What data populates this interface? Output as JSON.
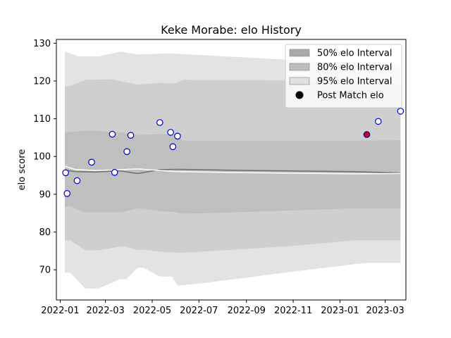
{
  "chart_data": {
    "type": "line",
    "title": "Keke Morabe: elo History",
    "xlabel": "",
    "ylabel": "elo score",
    "xlim": [
      "2021-12-27",
      "2023-03-28"
    ],
    "ylim": [
      62,
      131
    ],
    "x_ticks": [
      {
        "date": "2022-01-01",
        "label": "2022-01"
      },
      {
        "date": "2022-03-01",
        "label": "2022-03"
      },
      {
        "date": "2022-05-01",
        "label": "2022-05"
      },
      {
        "date": "2022-07-01",
        "label": "2022-07"
      },
      {
        "date": "2022-09-01",
        "label": "2022-09"
      },
      {
        "date": "2022-11-01",
        "label": "2022-11"
      },
      {
        "date": "2023-01-01",
        "label": "2023-01"
      },
      {
        "date": "2023-03-01",
        "label": "2023-03"
      }
    ],
    "y_ticks": [
      70,
      80,
      90,
      100,
      110,
      120,
      130
    ],
    "legend": {
      "position": "top-right",
      "entries": [
        {
          "label": "50% elo Interval",
          "color": "#a9a9a9"
        },
        {
          "label": "80% elo Interval",
          "color": "#bdbdbd"
        },
        {
          "label": "95% elo Interval",
          "color": "#e0e0e0"
        },
        {
          "label": "Post Match elo",
          "color": "#000000"
        }
      ]
    },
    "bands": [
      {
        "name": "95% elo Interval",
        "color": "#e3e3e3",
        "upper": [
          [
            "2022-01-07",
            127.8
          ],
          [
            "2022-01-26",
            126.5
          ],
          [
            "2022-02-20",
            126.5
          ],
          [
            "2022-03-20",
            127.8
          ],
          [
            "2022-04-12",
            127.0
          ],
          [
            "2022-05-25",
            127.3
          ],
          [
            "2023-03-21",
            124.0
          ]
        ],
        "lower": [
          [
            "2022-01-07",
            69.2
          ],
          [
            "2022-01-14",
            69.2
          ],
          [
            "2022-02-03",
            65.0
          ],
          [
            "2022-02-20",
            65.0
          ],
          [
            "2022-03-20",
            67.5
          ],
          [
            "2022-03-28",
            67.5
          ],
          [
            "2022-04-12",
            70.5
          ],
          [
            "2022-04-20",
            70.5
          ],
          [
            "2022-05-11",
            68.2
          ],
          [
            "2022-05-27",
            68.2
          ],
          [
            "2022-06-03",
            65.8
          ],
          [
            "2022-06-20",
            66.1
          ],
          [
            "2022-07-20",
            66.8
          ],
          [
            "2022-11-01",
            69.5
          ],
          [
            "2023-01-20",
            71.5
          ],
          [
            "2023-02-05",
            71.8
          ],
          [
            "2023-03-21",
            71.8
          ]
        ]
      },
      {
        "name": "80% elo Interval",
        "color": "#cfcfcf",
        "upper": [
          [
            "2022-01-07",
            118.5
          ],
          [
            "2022-01-14",
            118.7
          ],
          [
            "2022-02-03",
            120.3
          ],
          [
            "2022-03-10",
            120.4
          ],
          [
            "2022-04-12",
            119.0
          ],
          [
            "2022-05-10",
            119.5
          ],
          [
            "2022-05-31",
            119.4
          ],
          [
            "2022-06-10",
            120.3
          ],
          [
            "2023-02-05",
            120.0
          ],
          [
            "2023-03-21",
            119.0
          ]
        ],
        "lower": [
          [
            "2022-01-07",
            77.8
          ],
          [
            "2022-01-14",
            77.8
          ],
          [
            "2022-02-03",
            75.1
          ],
          [
            "2022-02-20",
            75.2
          ],
          [
            "2022-03-20",
            76.1
          ],
          [
            "2022-03-28",
            76.1
          ],
          [
            "2022-04-12",
            75.2
          ],
          [
            "2022-04-20",
            75.3
          ],
          [
            "2022-05-11",
            74.8
          ],
          [
            "2022-06-03",
            74.5
          ],
          [
            "2022-06-20",
            74.6
          ],
          [
            "2022-11-01",
            76.3
          ],
          [
            "2023-01-20",
            77.8
          ],
          [
            "2023-03-21",
            77.8
          ]
        ]
      },
      {
        "name": "50% elo Interval",
        "color": "#bfbfbf",
        "upper": [
          [
            "2022-01-07",
            106.4
          ],
          [
            "2022-01-14",
            106.5
          ],
          [
            "2022-02-03",
            106.8
          ],
          [
            "2022-02-20",
            106.8
          ],
          [
            "2022-03-20",
            106.4
          ],
          [
            "2022-04-12",
            105.7
          ],
          [
            "2022-05-11",
            105.9
          ],
          [
            "2022-05-31",
            106.0
          ],
          [
            "2022-06-10",
            104.2
          ],
          [
            "2023-02-05",
            104.2
          ],
          [
            "2023-03-21",
            104.3
          ]
        ],
        "lower": [
          [
            "2022-01-07",
            86.8
          ],
          [
            "2022-01-14",
            86.8
          ],
          [
            "2022-02-03",
            85.2
          ],
          [
            "2022-03-20",
            85.2
          ],
          [
            "2022-04-12",
            86.2
          ],
          [
            "2022-04-20",
            86.2
          ],
          [
            "2022-05-11",
            85.5
          ],
          [
            "2022-05-31",
            85.3
          ],
          [
            "2022-06-10",
            84.8
          ],
          [
            "2022-11-01",
            85.7
          ],
          [
            "2023-01-20",
            86.3
          ],
          [
            "2023-03-21",
            86.3
          ]
        ]
      }
    ],
    "series": [
      {
        "name": "",
        "line_color": "#6e6e6e",
        "points": [
          [
            "2022-01-07",
            96.4
          ],
          [
            "2022-01-20",
            96.0
          ],
          [
            "2022-02-15",
            95.9
          ],
          [
            "2022-03-20",
            96.2
          ],
          [
            "2022-04-12",
            95.5
          ],
          [
            "2022-05-11",
            96.5
          ],
          [
            "2022-06-03",
            96.6
          ],
          [
            "2022-09-01",
            96.3
          ],
          [
            "2023-01-20",
            96.0
          ],
          [
            "2023-03-21",
            95.6
          ]
        ]
      },
      {
        "name": "",
        "line_color": "#ffffff",
        "points": [
          [
            "2022-01-07",
            97.4
          ],
          [
            "2022-01-20",
            96.6
          ],
          [
            "2022-02-15",
            96.3
          ],
          [
            "2022-03-20",
            96.5
          ],
          [
            "2022-04-12",
            96.7
          ],
          [
            "2022-05-11",
            96.3
          ],
          [
            "2022-06-03",
            96.0
          ],
          [
            "2022-09-01",
            95.7
          ],
          [
            "2023-01-20",
            95.4
          ],
          [
            "2023-03-21",
            95.5
          ]
        ]
      }
    ],
    "post_match_elo": {
      "name": "Post Match elo",
      "marker_fill": "#ffffff",
      "marker_edge": "#0000cc",
      "points": [
        [
          "2022-01-08",
          95.7
        ],
        [
          "2022-01-10",
          90.2
        ],
        [
          "2022-01-23",
          93.6
        ],
        [
          "2022-02-11",
          98.5
        ],
        [
          "2022-03-10",
          105.9
        ],
        [
          "2022-03-13",
          95.8
        ],
        [
          "2022-03-29",
          101.3
        ],
        [
          "2022-04-03",
          105.6
        ],
        [
          "2022-05-11",
          109.0
        ],
        [
          "2022-05-25",
          106.4
        ],
        [
          "2022-05-28",
          102.6
        ],
        [
          "2022-06-03",
          105.4
        ],
        [
          "2023-02-20",
          109.3
        ],
        [
          "2023-03-21",
          112.0
        ]
      ]
    },
    "highlight_point": {
      "marker_fill": "#cc0000",
      "marker_edge": "#0000cc",
      "x": "2023-02-05",
      "y": 105.8
    },
    "grid": false
  }
}
